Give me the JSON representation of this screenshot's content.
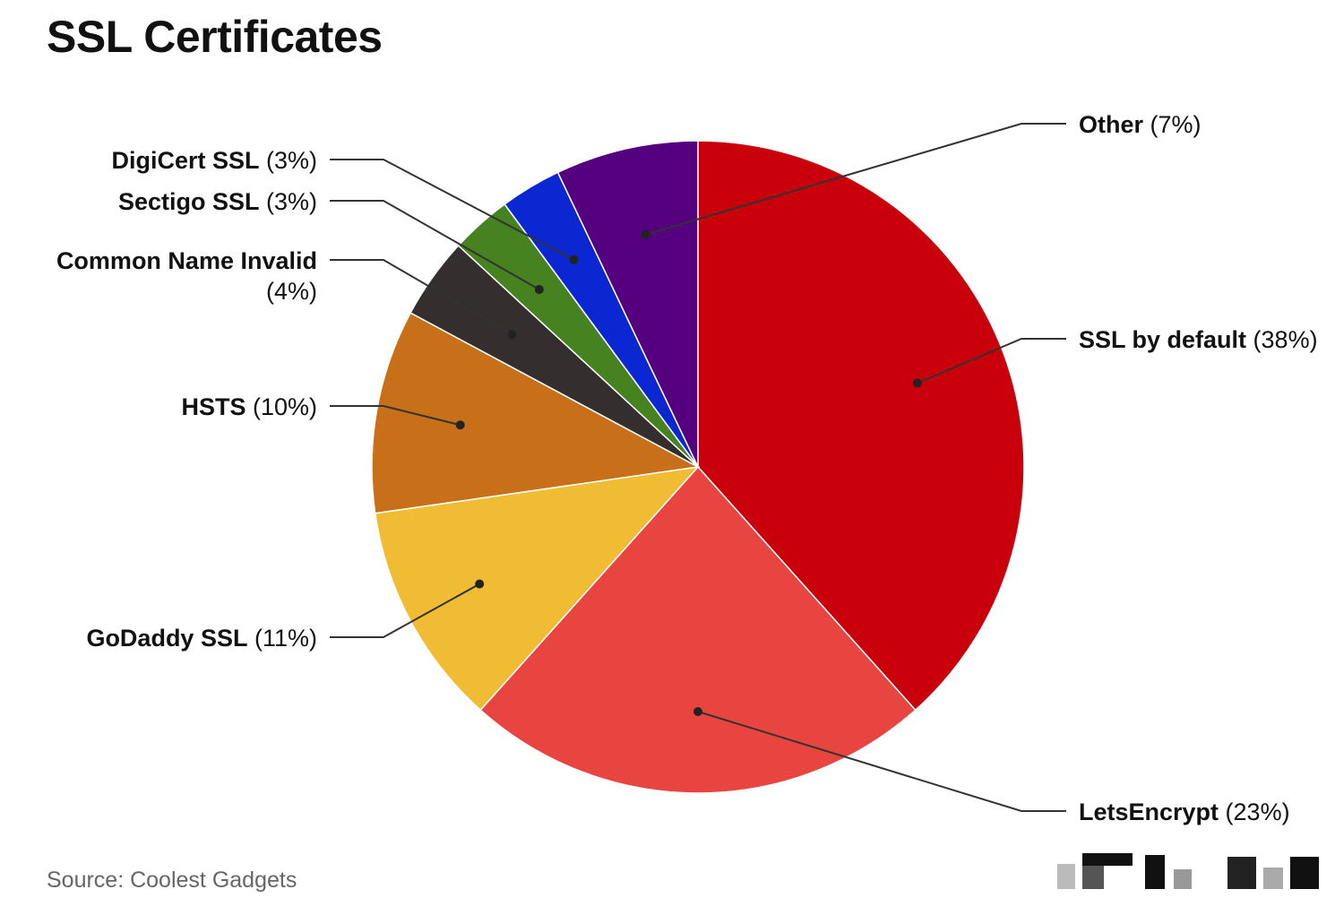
{
  "chart_data": {
    "type": "pie",
    "title": "SSL Certificates",
    "slices": [
      {
        "label": "SSL by default",
        "value": 38,
        "display": "(38%)",
        "color": "#C9000B"
      },
      {
        "label": "LetsEncrypt",
        "value": 23,
        "display": "(23%)",
        "color": "#E84540"
      },
      {
        "label": "GoDaddy SSL",
        "value": 11,
        "display": "(11%)",
        "color": "#F0BC33"
      },
      {
        "label": "HSTS",
        "value": 10,
        "display": "(10%)",
        "color": "#C77019"
      },
      {
        "label": "Common Name Invalid",
        "value": 4,
        "display": "(4%)",
        "color": "#352E2F"
      },
      {
        "label": "Sectigo SSL",
        "value": 3,
        "display": "(3%)",
        "color": "#46821F"
      },
      {
        "label": "DigiCert SSL",
        "value": 3,
        "display": "(3%)",
        "color": "#0A27D2"
      },
      {
        "label": "Other",
        "value": 7,
        "display": "(7%)",
        "color": "#55007F"
      }
    ]
  },
  "footer": {
    "source": "Source: Coolest Gadgets"
  }
}
